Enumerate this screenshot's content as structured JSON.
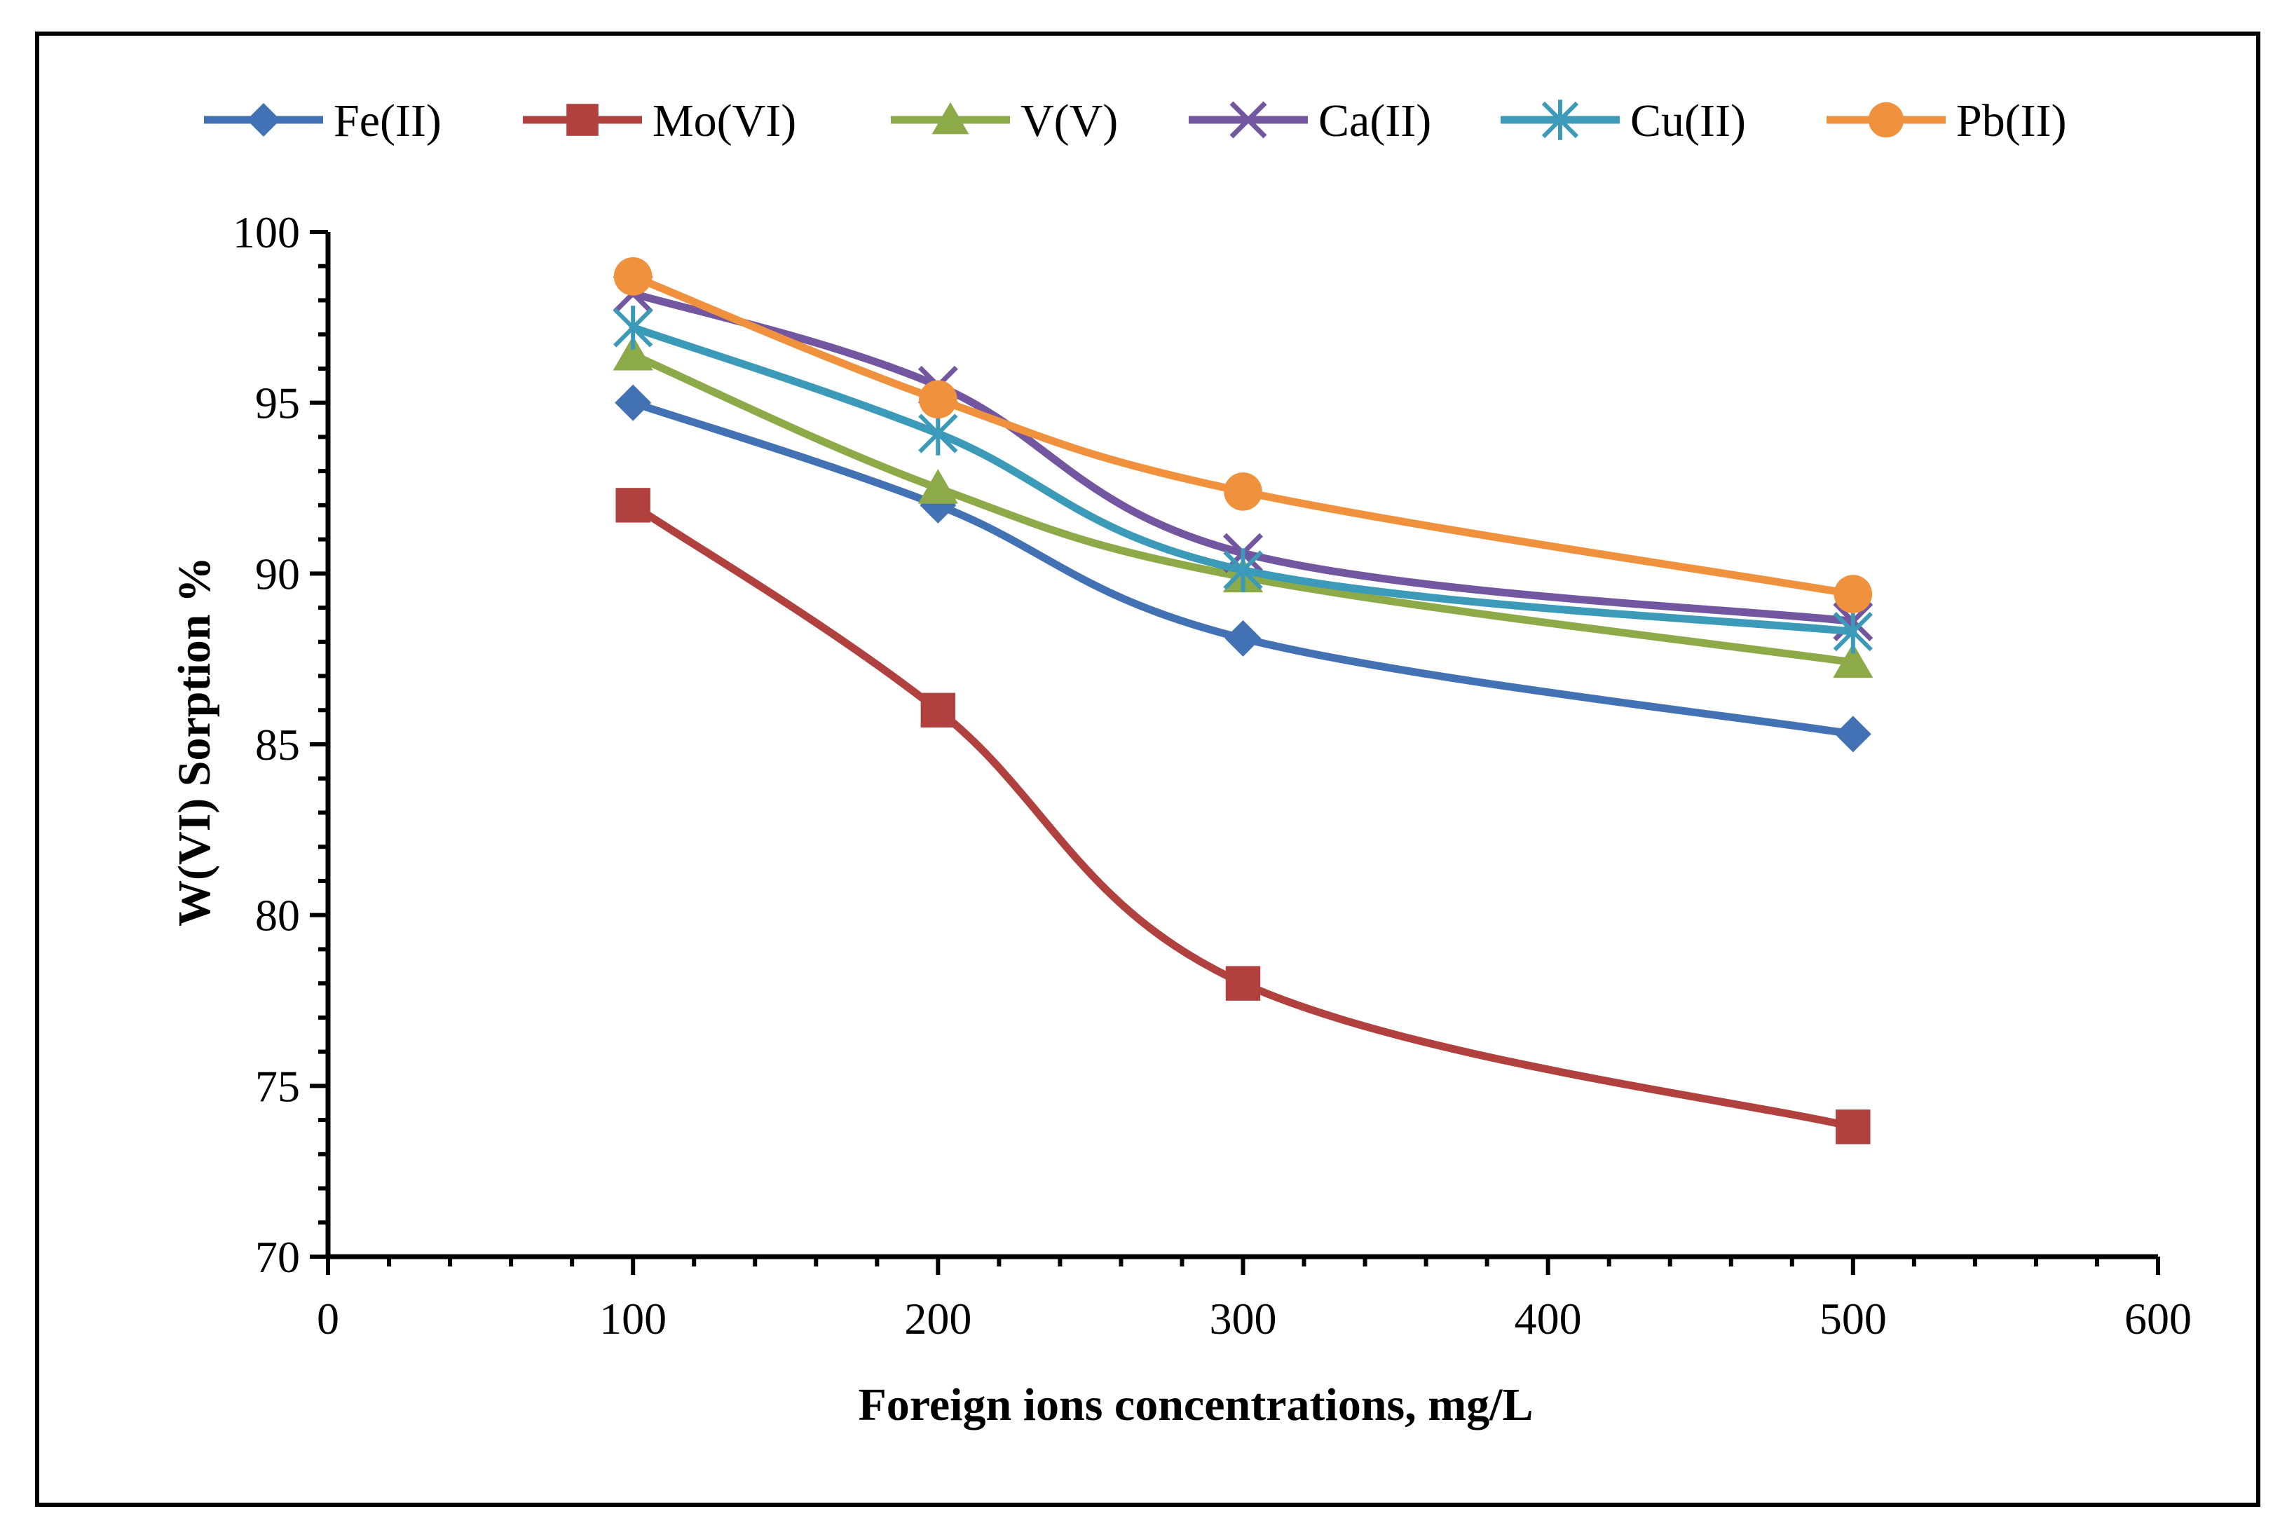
{
  "chart_data": {
    "type": "line",
    "title": "",
    "xlabel": "Foreign ions concentrations, mg/L",
    "ylabel": "W(VI) Sorption %",
    "xlim": [
      0,
      600
    ],
    "ylim": [
      70,
      100
    ],
    "xticks": [
      0,
      100,
      200,
      300,
      400,
      500,
      600
    ],
    "yticks": [
      70,
      75,
      80,
      85,
      90,
      95,
      100
    ],
    "x_minor_step": 20,
    "y_minor_step": 1,
    "grid": false,
    "legend_position": "top",
    "x": [
      100,
      200,
      300,
      500
    ],
    "series": [
      {
        "name": "Fe(II)",
        "marker": "diamond",
        "color": "#4372B4",
        "values": [
          95.0,
          92.0,
          88.1,
          85.3
        ]
      },
      {
        "name": "Mo(VI)",
        "marker": "square",
        "color": "#B0413E",
        "values": [
          92.0,
          86.0,
          78.0,
          73.8
        ]
      },
      {
        "name": "V(V)",
        "marker": "triangle",
        "color": "#8CAA48",
        "values": [
          96.4,
          92.5,
          89.9,
          87.4
        ]
      },
      {
        "name": "Ca(II)",
        "marker": "x",
        "color": "#7356A0",
        "values": [
          98.2,
          95.5,
          90.6,
          88.6
        ]
      },
      {
        "name": "Cu(II)",
        "marker": "star",
        "color": "#3A9AB8",
        "values": [
          97.2,
          94.1,
          90.1,
          88.3
        ]
      },
      {
        "name": "Pb(II)",
        "marker": "circle",
        "color": "#F0913E",
        "values": [
          98.7,
          95.1,
          92.4,
          89.4
        ]
      }
    ]
  }
}
